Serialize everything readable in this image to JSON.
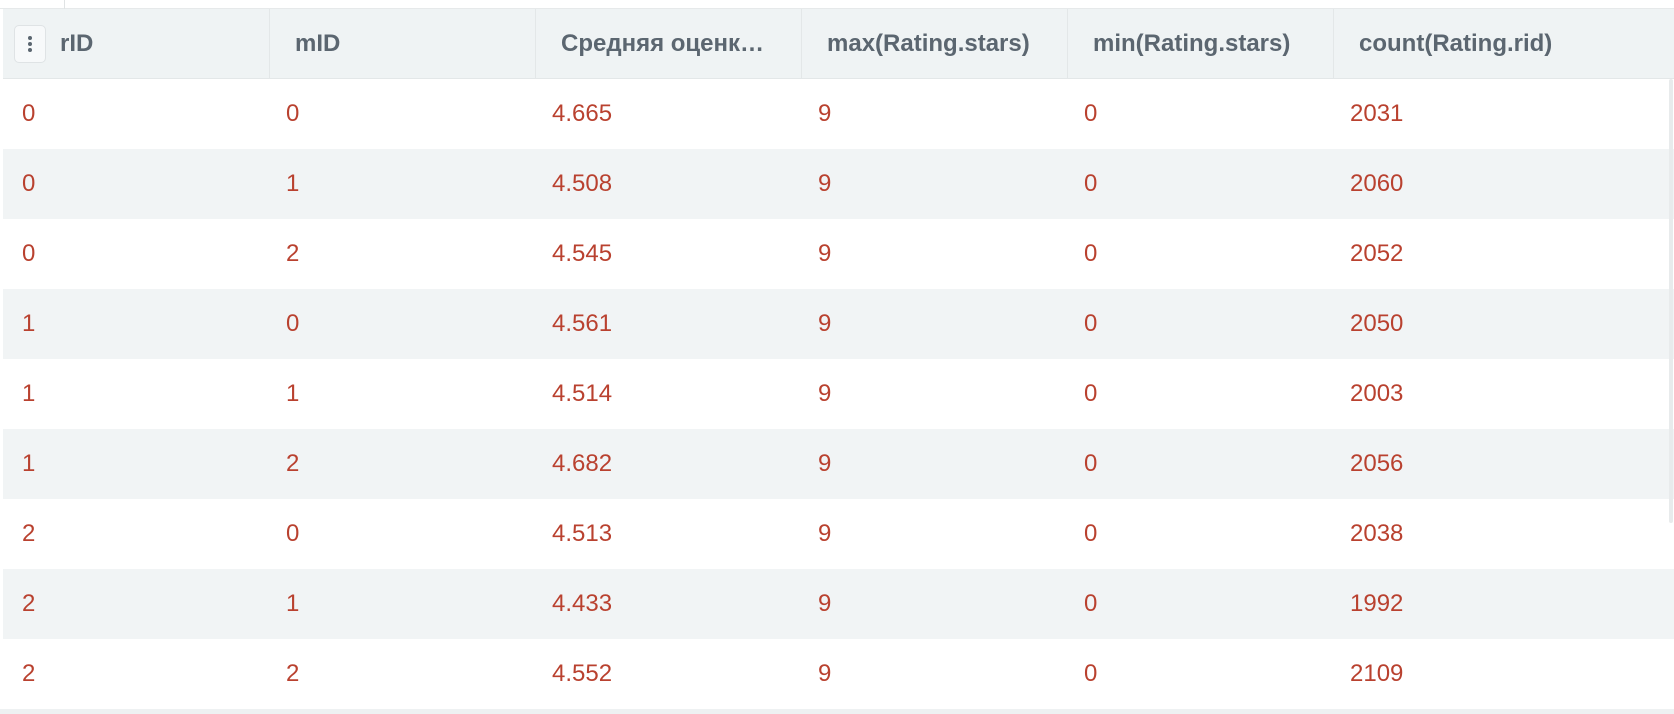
{
  "table": {
    "columns": [
      "rID",
      "mID",
      "Средняя оценк…",
      "max(Rating.stars)",
      "min(Rating.stars)",
      "count(Rating.rid)"
    ],
    "rows": [
      [
        "0",
        "0",
        "4.665",
        "9",
        "0",
        "2031"
      ],
      [
        "0",
        "1",
        "4.508",
        "9",
        "0",
        "2060"
      ],
      [
        "0",
        "2",
        "4.545",
        "9",
        "0",
        "2052"
      ],
      [
        "1",
        "0",
        "4.561",
        "9",
        "0",
        "2050"
      ],
      [
        "1",
        "1",
        "4.514",
        "9",
        "0",
        "2003"
      ],
      [
        "1",
        "2",
        "4.682",
        "9",
        "0",
        "2056"
      ],
      [
        "2",
        "0",
        "4.513",
        "9",
        "0",
        "2038"
      ],
      [
        "2",
        "1",
        "4.433",
        "9",
        "0",
        "1992"
      ],
      [
        "2",
        "2",
        "4.552",
        "9",
        "0",
        "2109"
      ]
    ]
  },
  "icons": {
    "column_menu": "vertical-dots-icon"
  },
  "colors": {
    "header_bg": "#eff3f4",
    "header_text": "#5b6670",
    "cell_text": "#b9412f",
    "stripe_bg": "#f1f4f5"
  }
}
